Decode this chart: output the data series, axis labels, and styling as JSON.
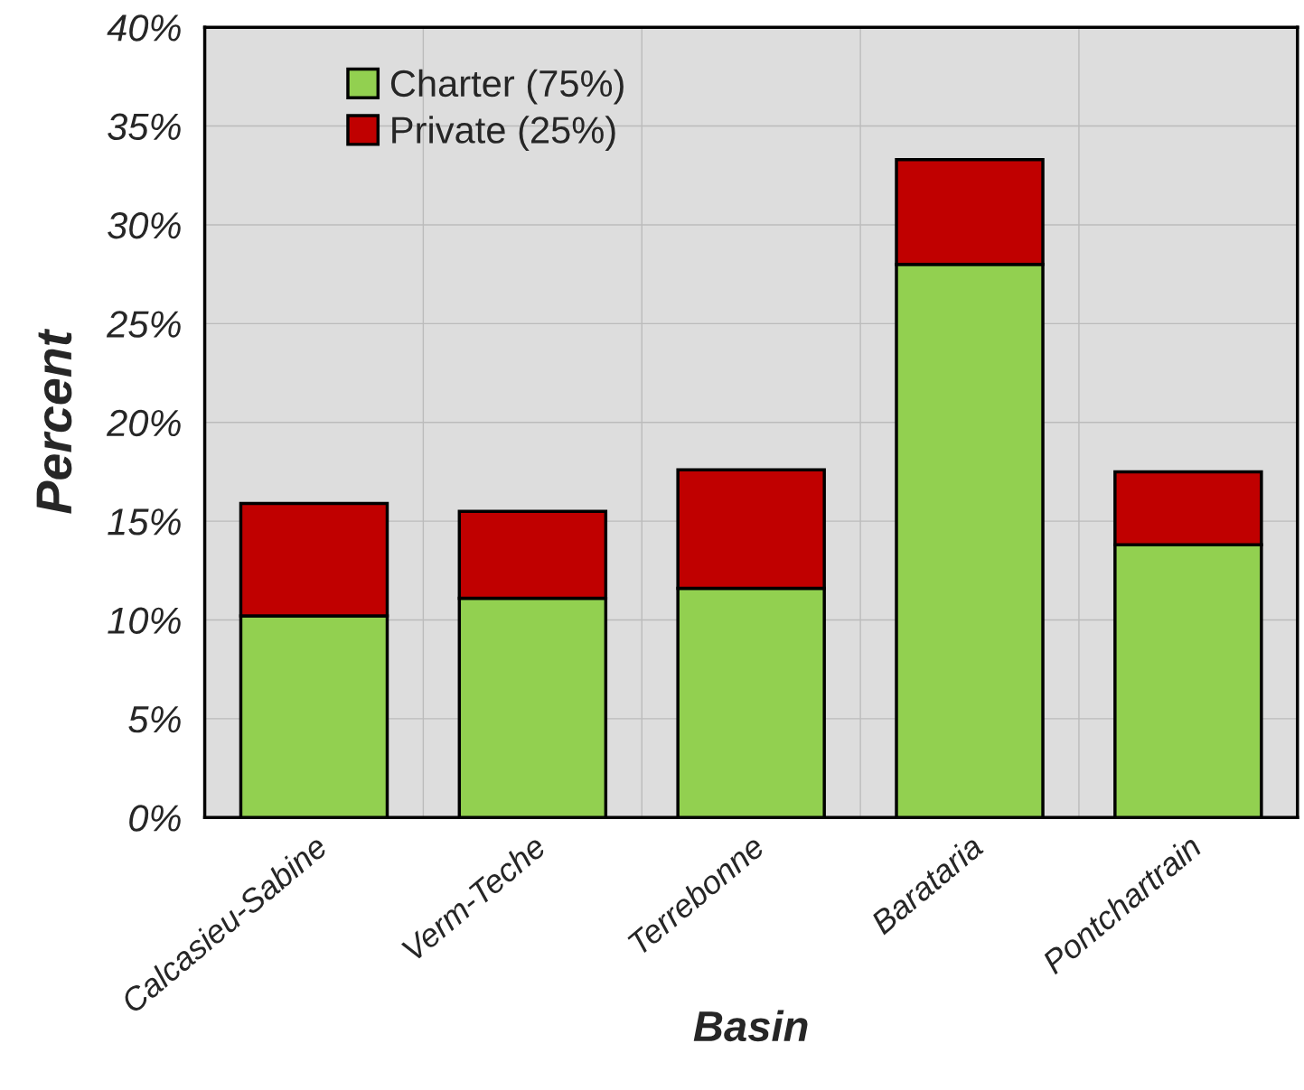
{
  "chart_data": {
    "type": "bar",
    "stacked": true,
    "xlabel": "Basin",
    "ylabel": "Percent",
    "categories": [
      "Calcasieu-Sabine",
      "Verm-Teche",
      "Terrebonne",
      "Barataria",
      "Pontchartrain"
    ],
    "series": [
      {
        "name": "Charter (75%)",
        "color": "#92d050",
        "values": [
          10.2,
          11.1,
          11.6,
          28.0,
          13.8
        ]
      },
      {
        "name": "Private (25%)",
        "color": "#c00000",
        "values": [
          5.7,
          4.4,
          6.0,
          5.3,
          3.7
        ]
      }
    ],
    "ylim": [
      0,
      40
    ],
    "yticks": [
      {
        "value": 0,
        "label": "0%"
      },
      {
        "value": 5,
        "label": "5%"
      },
      {
        "value": 10,
        "label": "10%"
      },
      {
        "value": 15,
        "label": "15%"
      },
      {
        "value": 20,
        "label": "20%"
      },
      {
        "value": 25,
        "label": "25%"
      },
      {
        "value": 30,
        "label": "30%"
      },
      {
        "value": 35,
        "label": "35%"
      },
      {
        "value": 40,
        "label": "40%"
      }
    ],
    "grid": true,
    "legend": "top left"
  }
}
